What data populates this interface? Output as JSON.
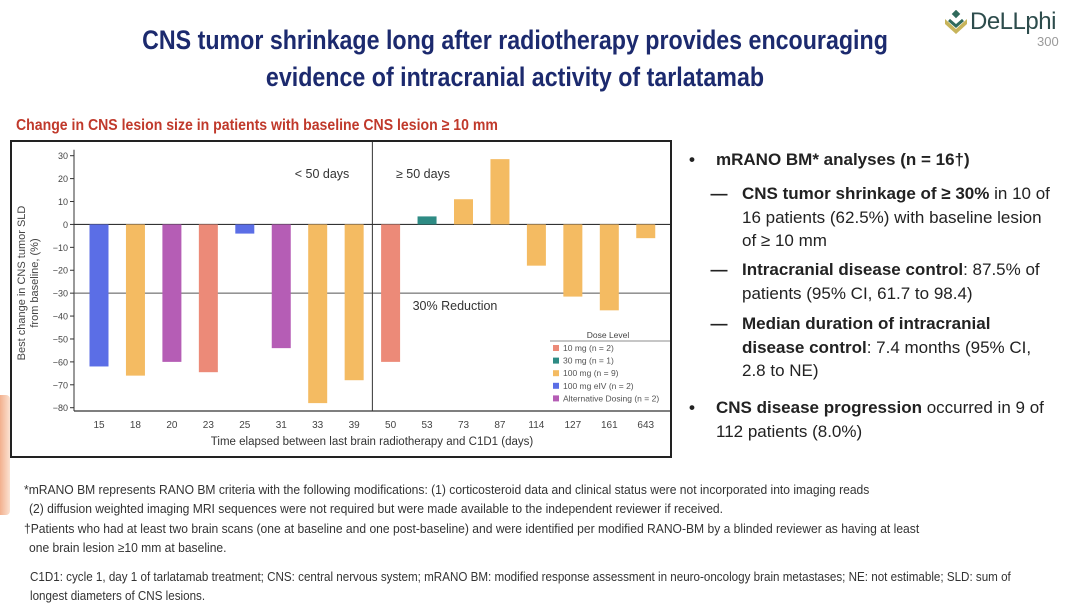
{
  "slide": {
    "title_line1": "CNS tumor shrinkage long after radiotherapy provides encouraging",
    "title_line2": "evidence of intracranial activity of tarlatamab",
    "logo": {
      "word": "DeLLphi",
      "sub": "300",
      "icon": "diamond-chevron-icon"
    },
    "chart_heading": "Change in CNS lesion size in patients with baseline CNS lesion ≥ 10 mm"
  },
  "chart_data": {
    "type": "bar",
    "title": "Change in CNS lesion size in patients with baseline CNS lesion ≥ 10 mm",
    "xlabel": "Time elapsed between last brain radiotherapy and C1D1 (days)",
    "ylabel_line1": "Best change in CNS tumor SLD",
    "ylabel_line2": "from baseline, (%)",
    "ylim": [
      -80,
      30
    ],
    "yticks": [
      30,
      20,
      10,
      0,
      -10,
      -20,
      -30,
      -40,
      -50,
      -60,
      -70,
      -80
    ],
    "grid": false,
    "categories": [
      "15",
      "18",
      "20",
      "23",
      "25",
      "31",
      "33",
      "39",
      "50",
      "53",
      "73",
      "87",
      "114",
      "127",
      "161",
      "643"
    ],
    "values": [
      -62,
      -66,
      -60,
      -64.5,
      -4,
      -54,
      -78,
      -68,
      -60,
      3.5,
      11,
      28.5,
      -18,
      -31.5,
      -37.5,
      -6
    ],
    "dose_group": [
      "100 mg eIV",
      "100 mg",
      "Alternative Dosing",
      "10 mg",
      "100 mg eIV",
      "Alternative Dosing",
      "100 mg",
      "100 mg",
      "10 mg",
      "30 mg",
      "100 mg",
      "100 mg",
      "100 mg",
      "100 mg",
      "100 mg",
      "100 mg"
    ],
    "reference_line": {
      "value": -30,
      "label": "30% Reduction"
    },
    "divider": {
      "after_category": "39",
      "left_label": "< 50 days",
      "right_label": "≥ 50 days"
    },
    "legend": {
      "title": "Dose Level",
      "placement": "bottom-right",
      "entries": [
        {
          "name": "10 mg",
          "label": "10 mg (n = 2)",
          "color": "#ec8a78"
        },
        {
          "name": "30 mg",
          "label": "30 mg (n = 1)",
          "color": "#2e8b84"
        },
        {
          "name": "100 mg",
          "label": "100 mg (n = 9)",
          "color": "#f4bb62"
        },
        {
          "name": "100 mg eIV",
          "label": "100 mg eIV (n = 2)",
          "color": "#5b6ee6"
        },
        {
          "name": "Alternative Dosing",
          "label": "Alternative Dosing (n = 2)",
          "color": "#b55db5"
        }
      ]
    }
  },
  "bullets": [
    {
      "level": 1,
      "marker": "•",
      "bold": "mRANO BM* analyses (n = 16†)",
      "rest": ""
    },
    {
      "level": 2,
      "marker": "—",
      "bold": "CNS tumor shrinkage of ≥ 30%",
      "rest": " in 10 of 16 patients (62.5%) with baseline lesion of ≥ 10 mm"
    },
    {
      "level": 2,
      "marker": "—",
      "bold": "Intracranial disease control",
      "rest": ": 87.5% of patients (95% CI, 61.7 to 98.4)"
    },
    {
      "level": 2,
      "marker": "—",
      "bold": "Median duration of intracranial disease control",
      "rest": ": 7.4 months (95% CI, 2.8 to NE)"
    },
    {
      "level": 1,
      "marker": "•",
      "bold": "CNS disease progression",
      "rest": " occurred in 9 of 112 patients (8.0%)"
    }
  ],
  "footnotes": {
    "f1_line1": "*mRANO BM represents RANO BM criteria with the following modifications: (1) corticosteroid data and clinical status were not incorporated into imaging reads",
    "f1_line2": "(2) diffusion weighted imaging MRI sequences were not required but were made available to the independent reviewer if received.",
    "f2_line1": "†Patients who had at least two brain scans (one at baseline and one post-baseline) and were identified per modified RANO-BM by a blinded reviewer as having at least",
    "f2_line2": "one brain lesion ≥10 mm at baseline.",
    "abbrev_line1": "C1D1: cycle 1, day 1 of tarlatamab treatment; CNS: central nervous system; mRANO BM: modified response assessment in neuro-oncology brain metastases; NE: not estimable; SLD: sum of",
    "abbrev_line2": "longest diameters of CNS lesions."
  }
}
